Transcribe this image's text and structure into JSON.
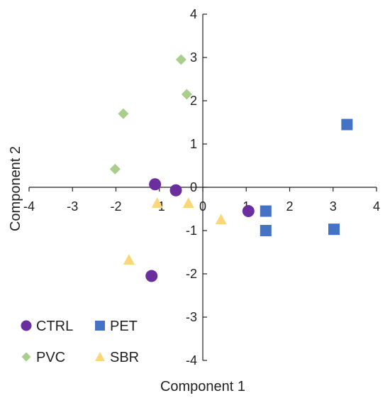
{
  "chart_data": {
    "type": "scatter",
    "xlabel": "Component 1",
    "ylabel": "Component 2",
    "xlim": [
      -4,
      4
    ],
    "ylim": [
      -4,
      4
    ],
    "xticks": [
      -4,
      -3,
      -2,
      -1,
      0,
      1,
      2,
      3,
      4
    ],
    "yticks": [
      -4,
      -3,
      -2,
      -1,
      0,
      1,
      2,
      3,
      4
    ],
    "grid": false,
    "legend_position": "bottom-left",
    "series": [
      {
        "name": "CTRL",
        "marker": "circle",
        "color": "#6B2E9E",
        "points": [
          [
            -1.1,
            0.07
          ],
          [
            -0.62,
            -0.07
          ],
          [
            1.05,
            -0.55
          ],
          [
            -1.18,
            -2.05
          ]
        ]
      },
      {
        "name": "PET",
        "marker": "square",
        "color": "#4472C4",
        "points": [
          [
            3.32,
            1.45
          ],
          [
            1.45,
            -0.55
          ],
          [
            1.45,
            -1.0
          ],
          [
            3.02,
            -0.97
          ]
        ]
      },
      {
        "name": "PVC",
        "marker": "diamond",
        "color": "#A9CD8A",
        "points": [
          [
            -0.5,
            2.95
          ],
          [
            -0.37,
            2.15
          ],
          [
            -1.83,
            1.7
          ],
          [
            -2.02,
            0.42
          ]
        ]
      },
      {
        "name": "SBR",
        "marker": "triangle",
        "color": "#F9D77A",
        "points": [
          [
            -1.05,
            -0.37
          ],
          [
            -0.33,
            -0.37
          ],
          [
            0.42,
            -0.75
          ],
          [
            -1.7,
            -1.68
          ]
        ]
      }
    ]
  }
}
